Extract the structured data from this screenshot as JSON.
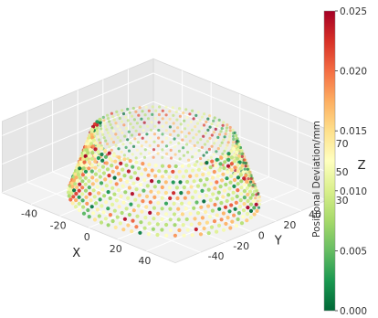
{
  "chart_data": {
    "type": "scatter",
    "projection": "3d",
    "shape": "truncated cone shell (frustum) of measurement points",
    "x_axis": {
      "label": "X",
      "ticks": [
        "-40",
        "-20",
        "0",
        "20",
        "40"
      ]
    },
    "y_axis": {
      "label": "Y",
      "ticks": [
        "-40",
        "-20",
        "0",
        "20",
        "40"
      ]
    },
    "z_axis": {
      "label": "Z",
      "ticks": [
        "30",
        "50",
        "70"
      ]
    },
    "geometry": {
      "base_radius": 50,
      "top_radius": 38,
      "z_min": 30,
      "z_max": 72
    },
    "colorbar": {
      "label": "Positional Deviation/mm",
      "ticks": [
        "0.000",
        "0.005",
        "0.010",
        "0.015",
        "0.020",
        "0.025"
      ],
      "range": [
        0.0,
        0.025
      ],
      "colormap": [
        "#006837",
        "#1a9850",
        "#66bd63",
        "#a6d96a",
        "#d9ef8b",
        "#ffffbf",
        "#fee08b",
        "#fdae61",
        "#f46d43",
        "#d73027",
        "#a50026"
      ]
    }
  }
}
